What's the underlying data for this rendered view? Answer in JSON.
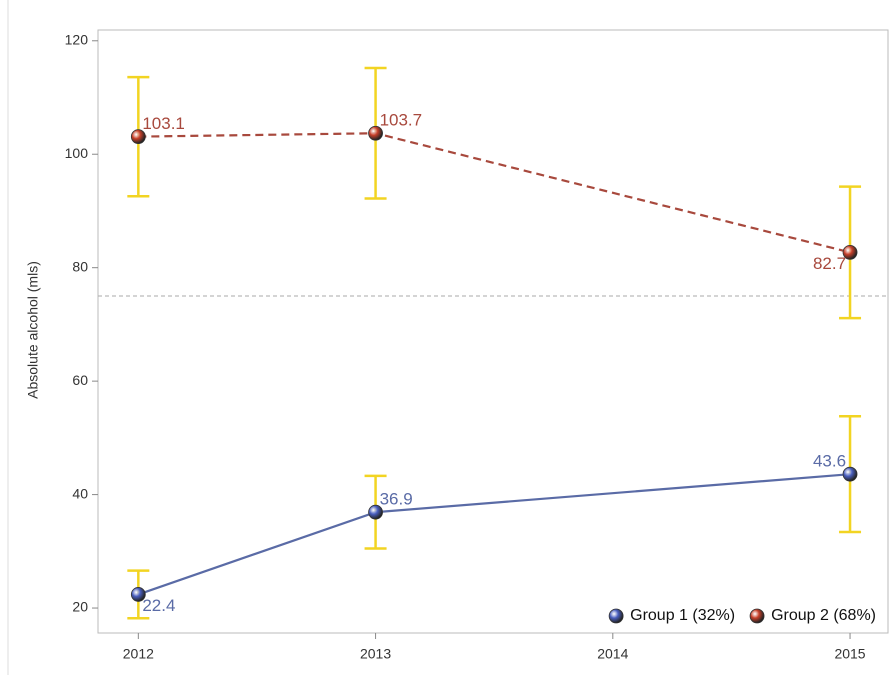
{
  "chart_data": {
    "type": "line",
    "y_label": "Absolute alcohol (mls)",
    "x": [
      2012,
      2013,
      2015
    ],
    "xlim": [
      2011.83,
      2015.16
    ],
    "xticks": [
      2012,
      2013,
      2014,
      2015
    ],
    "ylim": [
      15.6,
      121.9
    ],
    "yticks": [
      20,
      40,
      60,
      80,
      100,
      120
    ],
    "reference_line": 75,
    "error_color": "#f2d422",
    "legend": "bottom-right",
    "series": [
      {
        "name": "Group 1 (32%)",
        "color": "#5a6ba6",
        "marker_color": "#4a5fc0",
        "dashed": false,
        "values": [
          22.4,
          36.9,
          43.6
        ],
        "errors": [
          4.2,
          6.4,
          10.2
        ]
      },
      {
        "name": "Group 2 (68%)",
        "color": "#a8493d",
        "marker_color": "#c8402a",
        "dashed": true,
        "values": [
          103.1,
          103.7,
          82.7
        ],
        "errors": [
          10.5,
          11.5,
          11.6
        ]
      }
    ]
  }
}
